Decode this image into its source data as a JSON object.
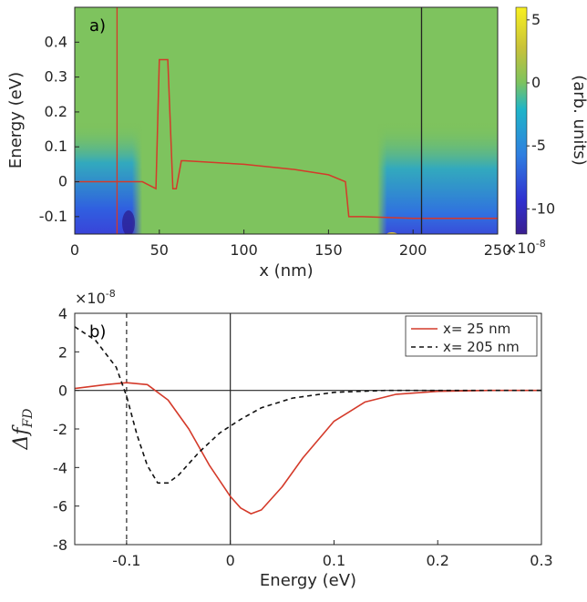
{
  "chart_data": [
    {
      "type": "heatmap",
      "panel_label": "a)",
      "xlabel": "x (nm)",
      "ylabel": "Energy (eV)",
      "xlim": [
        0,
        250
      ],
      "ylim": [
        -0.15,
        0.5
      ],
      "xticks": [
        "0",
        "50",
        "100",
        "150",
        "200",
        "250"
      ],
      "yticks": [
        "0.4",
        "0.3",
        "0.2",
        "0.1",
        "0",
        "-0.1"
      ],
      "colorbar": {
        "label": "(arb. units)",
        "range": [
          -12,
          6
        ],
        "ticks": [
          "5",
          "0",
          "-5",
          "-10"
        ],
        "multiplier": "×10",
        "multiplier_exp": "-8"
      },
      "background_color": "#7ec35e",
      "band_profile": {
        "color": "#d43a2a",
        "x": [
          0,
          40,
          48,
          50,
          55,
          58,
          60,
          63,
          65,
          100,
          130,
          150,
          160,
          162,
          170,
          200,
          250
        ],
        "y": [
          0.0,
          0.0,
          -0.02,
          0.35,
          0.35,
          -0.02,
          -0.02,
          0.06,
          0.06,
          0.05,
          0.035,
          0.02,
          0.0,
          -0.1,
          -0.1,
          -0.105,
          -0.105
        ]
      },
      "vertical_lines": [
        {
          "x": 25,
          "color": "#d43a2a"
        },
        {
          "x": 205,
          "color": "#222222"
        }
      ]
    },
    {
      "type": "line",
      "panel_label": "b)",
      "xlabel": "Energy (eV)",
      "ylabel_main": "Δf",
      "ylabel_sub": "FD",
      "xlim": [
        -0.15,
        0.3
      ],
      "ylim": [
        -8,
        4
      ],
      "y_multiplier": "×10",
      "y_multiplier_exp": "-8",
      "xticks": [
        "-0.1",
        "0",
        "0.1",
        "0.2",
        "0.3"
      ],
      "yticks": [
        "4",
        "2",
        "0",
        "-2",
        "-4",
        "-6",
        "-8"
      ],
      "legend_position": "top-right",
      "series": [
        {
          "name": "x= 25 nm",
          "color": "#d43a2a",
          "dash": "solid",
          "x": [
            -0.15,
            -0.12,
            -0.1,
            -0.08,
            -0.06,
            -0.04,
            -0.02,
            0.0,
            0.01,
            0.02,
            0.03,
            0.05,
            0.07,
            0.1,
            0.13,
            0.16,
            0.2,
            0.25,
            0.3
          ],
          "y": [
            0.1,
            0.3,
            0.4,
            0.3,
            -0.5,
            -2.0,
            -3.9,
            -5.5,
            -6.1,
            -6.4,
            -6.2,
            -5.0,
            -3.5,
            -1.6,
            -0.6,
            -0.2,
            -0.05,
            0.0,
            0.0
          ]
        },
        {
          "name": "x= 205 nm",
          "color": "#111111",
          "dash": "dashed",
          "x": [
            -0.15,
            -0.13,
            -0.11,
            -0.1,
            -0.09,
            -0.08,
            -0.07,
            -0.06,
            -0.05,
            -0.03,
            -0.01,
            0.01,
            0.03,
            0.06,
            0.1,
            0.15,
            0.2,
            0.3
          ],
          "y": [
            3.3,
            2.6,
            1.2,
            -0.3,
            -2.3,
            -3.9,
            -4.8,
            -4.8,
            -4.4,
            -3.2,
            -2.2,
            -1.5,
            -0.9,
            -0.4,
            -0.1,
            0.0,
            0.0,
            0.0
          ]
        }
      ],
      "reference_lines": {
        "vertical": [
          {
            "x": -0.1,
            "dash": "dashed"
          },
          {
            "x": 0,
            "dash": "solid"
          }
        ],
        "horizontal": [
          {
            "y": 0,
            "dash": "solid"
          }
        ]
      }
    }
  ]
}
